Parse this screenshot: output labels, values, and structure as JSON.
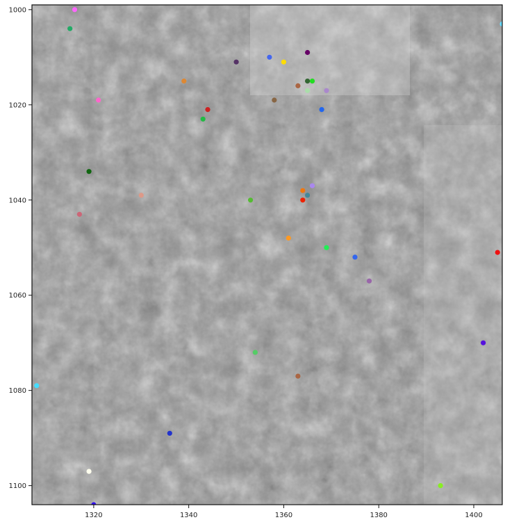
{
  "chart_data": {
    "type": "scatter",
    "title": "",
    "xlabel": "",
    "ylabel": "",
    "xlim": [
      1307,
      1406
    ],
    "ylim": [
      1104,
      999
    ],
    "y_axis_inverted": true,
    "grid": false,
    "legend": "none",
    "background": "grayscale microscopy image",
    "x_ticks": [
      "1320",
      "1340",
      "1360",
      "1380",
      "1400"
    ],
    "y_ticks": [
      "1000",
      "1020",
      "1040",
      "1060",
      "1080",
      "1100"
    ],
    "points": [
      {
        "x": 1316,
        "y": 1000,
        "color": "#ff66ff"
      },
      {
        "x": 1315,
        "y": 1004,
        "color": "#22aa66"
      },
      {
        "x": 1406,
        "y": 1003,
        "color": "#66ddff"
      },
      {
        "x": 1357,
        "y": 1010,
        "color": "#4466ee"
      },
      {
        "x": 1360,
        "y": 1011,
        "color": "#ffdd00"
      },
      {
        "x": 1365,
        "y": 1009,
        "color": "#660066"
      },
      {
        "x": 1350,
        "y": 1011,
        "color": "#553366"
      },
      {
        "x": 1339,
        "y": 1015,
        "color": "#dd8833"
      },
      {
        "x": 1365,
        "y": 1015,
        "color": "#336633"
      },
      {
        "x": 1366,
        "y": 1015,
        "color": "#22dd22"
      },
      {
        "x": 1363,
        "y": 1016,
        "color": "#aa6644"
      },
      {
        "x": 1365,
        "y": 1017,
        "color": "#aaddaa"
      },
      {
        "x": 1369,
        "y": 1017,
        "color": "#aa88cc"
      },
      {
        "x": 1321,
        "y": 1019,
        "color": "#ff66cc"
      },
      {
        "x": 1358,
        "y": 1019,
        "color": "#886644"
      },
      {
        "x": 1344,
        "y": 1021,
        "color": "#cc2222"
      },
      {
        "x": 1368,
        "y": 1021,
        "color": "#2266ee"
      },
      {
        "x": 1343,
        "y": 1023,
        "color": "#22bb44"
      },
      {
        "x": 1319,
        "y": 1034,
        "color": "#116611"
      },
      {
        "x": 1366,
        "y": 1037,
        "color": "#aa88ee"
      },
      {
        "x": 1364,
        "y": 1038,
        "color": "#ee7711"
      },
      {
        "x": 1365,
        "y": 1039,
        "color": "#448899"
      },
      {
        "x": 1330,
        "y": 1039,
        "color": "#dd9988"
      },
      {
        "x": 1353,
        "y": 1040,
        "color": "#55bb33"
      },
      {
        "x": 1364,
        "y": 1040,
        "color": "#ee2200"
      },
      {
        "x": 1317,
        "y": 1043,
        "color": "#cc6677"
      },
      {
        "x": 1361,
        "y": 1048,
        "color": "#ff9922"
      },
      {
        "x": 1369,
        "y": 1050,
        "color": "#22ee55"
      },
      {
        "x": 1405,
        "y": 1051,
        "color": "#ee1111"
      },
      {
        "x": 1375,
        "y": 1052,
        "color": "#3366ee"
      },
      {
        "x": 1378,
        "y": 1057,
        "color": "#9966aa"
      },
      {
        "x": 1402,
        "y": 1070,
        "color": "#5511dd"
      },
      {
        "x": 1354,
        "y": 1072,
        "color": "#55cc66"
      },
      {
        "x": 1363,
        "y": 1077,
        "color": "#aa6644"
      },
      {
        "x": 1308,
        "y": 1079,
        "color": "#44ddff"
      },
      {
        "x": 1336,
        "y": 1089,
        "color": "#2233cc"
      },
      {
        "x": 1319,
        "y": 1097,
        "color": "#ffffee"
      },
      {
        "x": 1393,
        "y": 1100,
        "color": "#88ee22"
      },
      {
        "x": 1320,
        "y": 1104,
        "color": "#3311ee"
      }
    ]
  }
}
